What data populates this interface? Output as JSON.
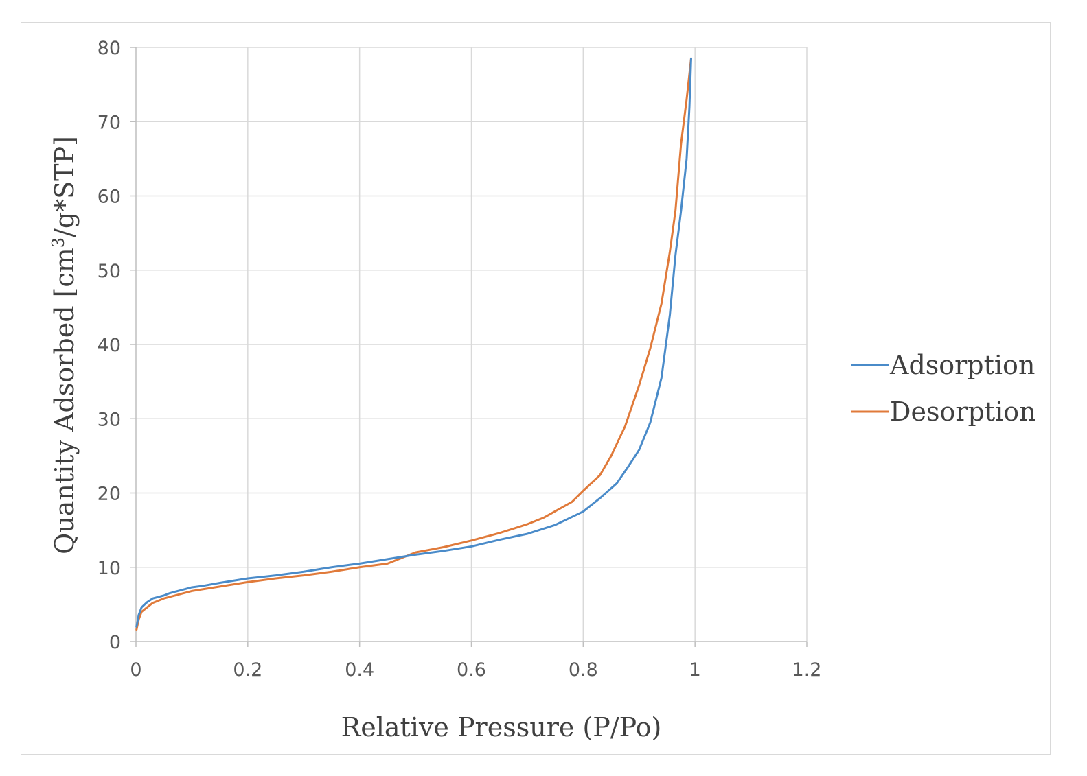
{
  "chart_data": {
    "type": "line",
    "title": "",
    "xlabel": "Relative Pressure (P/Po)",
    "ylabel_main": "Quantity Adsorbed  [cm",
    "ylabel_sup": "3",
    "ylabel_tail": "/g*STP]",
    "xlim": [
      0,
      1.2
    ],
    "ylim": [
      0,
      80
    ],
    "x_ticks": [
      0,
      0.2,
      0.4,
      0.6,
      0.8,
      1,
      1.2
    ],
    "x_tick_labels": [
      "0",
      "0.2",
      "0.4",
      "0.6",
      "0.8",
      "1",
      "1.2"
    ],
    "y_ticks": [
      0,
      10,
      20,
      30,
      40,
      50,
      60,
      70,
      80
    ],
    "y_tick_labels": [
      "0",
      "10",
      "20",
      "30",
      "40",
      "50",
      "60",
      "70",
      "80"
    ],
    "grid": true,
    "legend_position": "right",
    "series": [
      {
        "name": "Adsorption",
        "color": "#4a8bc9",
        "x": [
          0.001,
          0.005,
          0.01,
          0.02,
          0.03,
          0.05,
          0.06,
          0.08,
          0.1,
          0.12,
          0.15,
          0.2,
          0.25,
          0.3,
          0.35,
          0.4,
          0.45,
          0.5,
          0.55,
          0.6,
          0.65,
          0.7,
          0.75,
          0.8,
          0.83,
          0.86,
          0.88,
          0.9,
          0.92,
          0.94,
          0.955,
          0.965,
          0.975,
          0.985,
          0.99,
          0.993
        ],
        "values": [
          2.0,
          3.6,
          4.6,
          5.3,
          5.8,
          6.2,
          6.5,
          6.9,
          7.3,
          7.5,
          7.9,
          8.5,
          8.9,
          9.4,
          10.0,
          10.5,
          11.1,
          11.7,
          12.2,
          12.8,
          13.7,
          14.5,
          15.7,
          17.5,
          19.3,
          21.3,
          23.5,
          25.8,
          29.5,
          35.5,
          44.0,
          52.0,
          58.0,
          65.0,
          72.0,
          78.5
        ]
      },
      {
        "name": "Desorption",
        "color": "#e07a3a",
        "x": [
          0.001,
          0.005,
          0.01,
          0.02,
          0.03,
          0.05,
          0.08,
          0.1,
          0.15,
          0.2,
          0.25,
          0.3,
          0.35,
          0.4,
          0.45,
          0.5,
          0.55,
          0.6,
          0.65,
          0.7,
          0.73,
          0.78,
          0.8,
          0.83,
          0.85,
          0.875,
          0.9,
          0.92,
          0.94,
          0.955,
          0.965,
          0.975,
          0.985,
          0.993
        ],
        "values": [
          1.6,
          3.0,
          4.0,
          4.6,
          5.2,
          5.8,
          6.4,
          6.8,
          7.4,
          8.0,
          8.5,
          8.9,
          9.4,
          10.0,
          10.5,
          12.0,
          12.7,
          13.6,
          14.6,
          15.8,
          16.7,
          18.8,
          20.3,
          22.4,
          25.0,
          29.0,
          34.5,
          39.5,
          45.5,
          52.5,
          58.0,
          67.0,
          73.0,
          78.5
        ]
      }
    ]
  }
}
